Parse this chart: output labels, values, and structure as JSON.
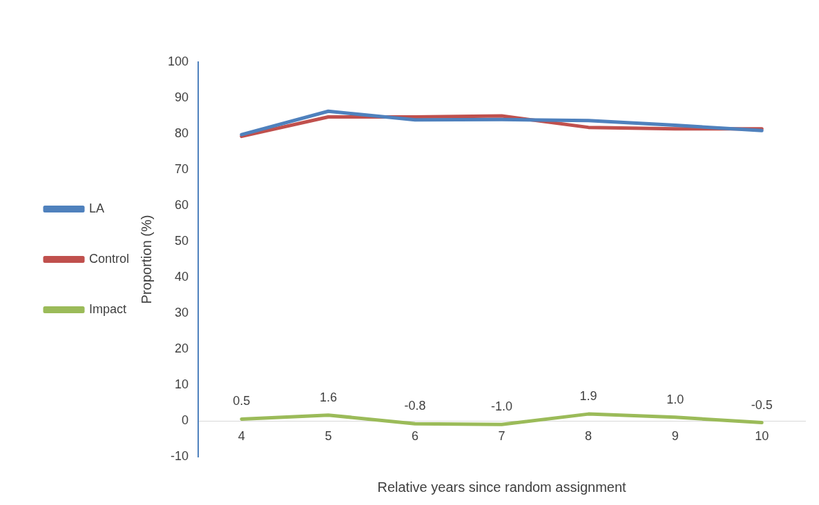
{
  "chart_data": {
    "type": "line",
    "xlabel": "Relative years since random assignment",
    "ylabel": "Proportion (%)",
    "categories": [
      "4",
      "5",
      "6",
      "7",
      "8",
      "9",
      "10"
    ],
    "series": [
      {
        "name": "LA",
        "color": "#4f81bd",
        "values": [
          79.8,
          86.3,
          83.9,
          84.0,
          83.7,
          82.4,
          80.9
        ]
      },
      {
        "name": "Control",
        "color": "#c0504d",
        "values": [
          79.3,
          84.7,
          84.7,
          85.0,
          81.8,
          81.4,
          81.4
        ]
      },
      {
        "name": "Impact",
        "color": "#9bbb59",
        "values": [
          0.5,
          1.6,
          -0.8,
          -1.0,
          1.9,
          1.0,
          -0.5
        ],
        "value_labels": [
          "0.5",
          "1.6",
          "-0.8",
          "-1.0",
          "1.9",
          "1.0",
          "-0.5"
        ]
      }
    ],
    "ylim": [
      -10,
      100
    ],
    "yticks": [
      -10,
      0,
      10,
      20,
      30,
      40,
      50,
      60,
      70,
      80,
      90,
      100
    ],
    "grid": false,
    "legend": "left",
    "marker": "none",
    "line_style": "solid"
  }
}
